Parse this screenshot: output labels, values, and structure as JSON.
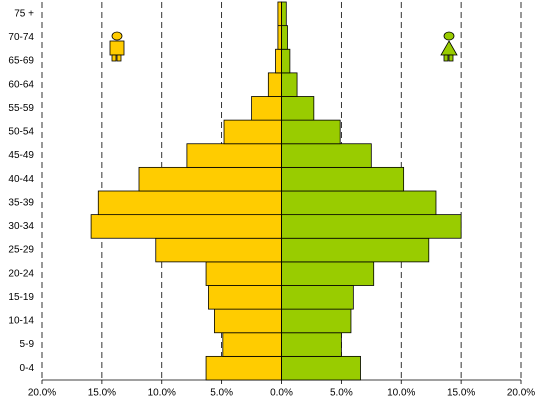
{
  "chart_data": {
    "type": "pyramid",
    "categories": [
      "0-4",
      "5-9",
      "10-14",
      "15-19",
      "20-24",
      "25-29",
      "30-34",
      "35-39",
      "40-44",
      "45-49",
      "50-54",
      "55-59",
      "60-64",
      "65-69",
      "70-74",
      "75 +"
    ],
    "series": [
      {
        "color": "#ffcc00",
        "values": [
          -6.3,
          -4.9,
          -5.6,
          -6.1,
          -6.3,
          -10.5,
          -15.9,
          -15.3,
          -11.9,
          -7.9,
          -4.8,
          -2.5,
          -1.1,
          -0.5,
          -0.3,
          -0.3
        ]
      },
      {
        "color": "#99cc00",
        "values": [
          6.6,
          5.0,
          5.8,
          6.0,
          7.7,
          12.3,
          15.0,
          12.9,
          10.2,
          7.5,
          4.9,
          2.7,
          1.3,
          0.7,
          0.5,
          0.4
        ]
      }
    ],
    "xlim": [
      -20,
      20
    ],
    "xticks": [
      {
        "value": -20,
        "label": "20.0%"
      },
      {
        "value": -15,
        "label": "15.0%"
      },
      {
        "value": -10,
        "label": "10.0%"
      },
      {
        "value": -5,
        "label": "5.0%"
      },
      {
        "value": 0,
        "label": "0.0%"
      },
      {
        "value": 5,
        "label": "5.0%"
      },
      {
        "value": 10,
        "label": "10.0%"
      },
      {
        "value": 15,
        "label": "15.0%"
      },
      {
        "value": 20,
        "label": "20.0%"
      }
    ],
    "grid": true
  }
}
